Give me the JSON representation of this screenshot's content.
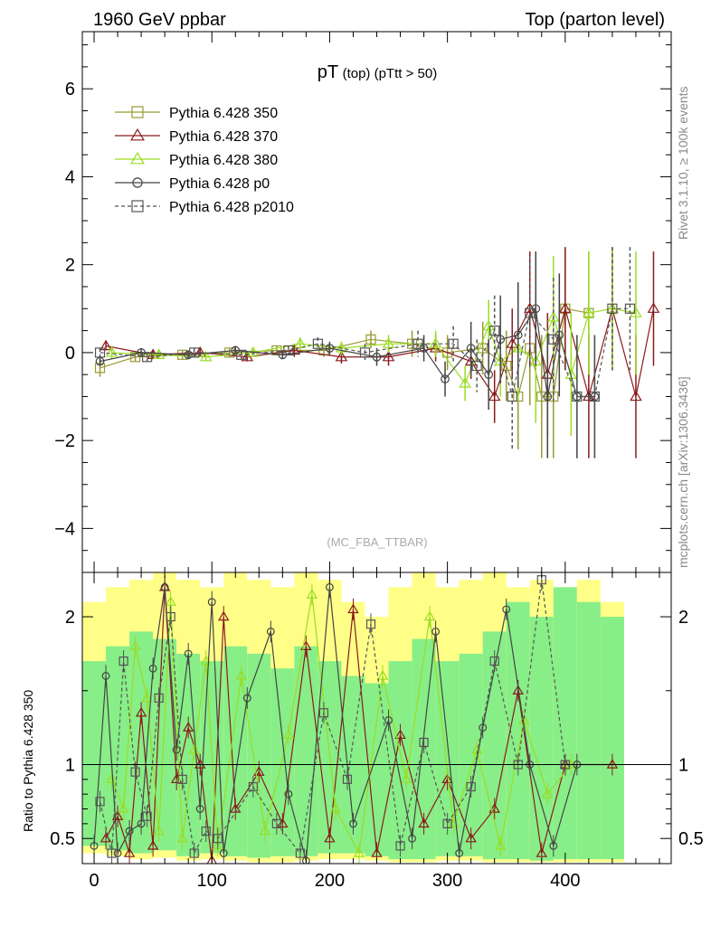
{
  "header": {
    "left": "1960 GeV ppbar",
    "right": "Top (parton level)"
  },
  "side_labels": {
    "upper": "Rivet 3.1.10, ≥ 100k events",
    "lower": "mcplots.cern.ch [arXiv:1306.3436]"
  },
  "chart_data": [
    {
      "type": "line",
      "title_main": "pT",
      "title_small": "(top) (pTtt > 50)",
      "watermark": "(MC_FBA_TTBAR)",
      "xlim": [
        -10,
        490
      ],
      "ylim": [
        -5,
        7.3
      ],
      "yticks": [
        -4,
        -2,
        0,
        2,
        4,
        6
      ],
      "ytick_labels": [
        "−4",
        "−2",
        "0",
        "2",
        "4",
        "6"
      ],
      "legend_placement": "top-left",
      "series": [
        {
          "name": "Pythia 6.428 350",
          "color": "#999933",
          "marker": "square",
          "dash": false,
          "x": [
            5,
            35,
            75,
            115,
            155,
            195,
            235,
            270,
            300,
            330,
            350,
            360,
            370,
            380,
            390,
            400,
            420
          ],
          "y": [
            -0.35,
            -0.1,
            -0.05,
            0,
            0.05,
            0.05,
            0.3,
            0.2,
            0,
            0.1,
            -0.3,
            -1.0,
            0.1,
            -1.0,
            -1.0,
            1.0,
            0.9
          ],
          "err": [
            0.2,
            0.1,
            0.1,
            0.1,
            0.1,
            0.15,
            0.2,
            0.3,
            0.4,
            0.6,
            0.8,
            1.2,
            1.3,
            1.4,
            1.4,
            1.4,
            1.4
          ]
        },
        {
          "name": "Pythia 6.428 370",
          "color": "#8b1a1a",
          "marker": "triangle",
          "dash": false,
          "x": [
            10,
            50,
            90,
            130,
            170,
            210,
            250,
            290,
            320,
            340,
            355,
            370,
            385,
            400,
            420,
            440,
            460,
            475
          ],
          "y": [
            0.15,
            -0.05,
            0,
            -0.1,
            0.05,
            -0.1,
            -0.1,
            0.1,
            -0.2,
            -1.0,
            0.2,
            1.0,
            -0.5,
            1.0,
            -1.0,
            1.0,
            -1.0,
            1.0
          ],
          "err": [
            0.1,
            0.1,
            0.1,
            0.1,
            0.15,
            0.15,
            0.2,
            0.3,
            0.4,
            0.6,
            0.8,
            1.3,
            1.4,
            1.4,
            1.4,
            1.4,
            1.4,
            1.3
          ]
        },
        {
          "name": "Pythia 6.428 380",
          "color": "#99dd22",
          "marker": "triangle",
          "dash": false,
          "x": [
            15,
            55,
            95,
            135,
            175,
            210,
            250,
            290,
            315,
            335,
            345,
            360,
            375,
            390,
            405,
            420,
            440,
            460
          ],
          "y": [
            0,
            -0.05,
            -0.1,
            0,
            0.2,
            0.1,
            0.2,
            0.2,
            -0.7,
            0.6,
            -0.2,
            0.1,
            -0.2,
            0.8,
            -0.5,
            0.9,
            1.0,
            0.9
          ],
          "err": [
            0.15,
            0.1,
            0.1,
            0.1,
            0.15,
            0.15,
            0.2,
            0.3,
            0.4,
            0.6,
            0.8,
            1.2,
            1.4,
            1.4,
            1.4,
            1.4,
            1.4,
            1.4
          ]
        },
        {
          "name": "Pythia 6.428 p0",
          "color": "#444444",
          "marker": "circle",
          "dash": false,
          "x": [
            5,
            40,
            80,
            120,
            160,
            200,
            240,
            280,
            298,
            320,
            335,
            345,
            360,
            375,
            385,
            395,
            410,
            425
          ],
          "y": [
            -0.2,
            0,
            -0.05,
            0.05,
            -0.05,
            0.1,
            -0.1,
            0.1,
            -0.6,
            0.1,
            -0.5,
            0.3,
            0.4,
            1.0,
            -1.0,
            0.4,
            -1.0,
            -1.0
          ],
          "err": [
            0.1,
            0.1,
            0.1,
            0.1,
            0.1,
            0.15,
            0.2,
            0.3,
            0.4,
            0.6,
            0.8,
            1.0,
            1.2,
            1.3,
            1.4,
            1.4,
            1.4,
            1.4
          ]
        },
        {
          "name": "Pythia 6.428 p2010",
          "color": "#555555",
          "marker": "square",
          "dash": true,
          "x": [
            5,
            45,
            85,
            125,
            165,
            190,
            230,
            275,
            305,
            325,
            340,
            355,
            370,
            390,
            410,
            425,
            440,
            455
          ],
          "y": [
            0,
            -0.1,
            0,
            -0.05,
            0.05,
            0.2,
            0,
            0.2,
            0.2,
            -0.3,
            0.5,
            -1.0,
            0.9,
            0.3,
            -1.0,
            -1.0,
            1.0,
            1.0
          ],
          "err": [
            0.1,
            0.1,
            0.1,
            0.1,
            0.1,
            0.15,
            0.2,
            0.3,
            0.4,
            0.6,
            0.8,
            1.2,
            1.3,
            1.4,
            1.4,
            1.4,
            1.4,
            1.4
          ]
        }
      ]
    },
    {
      "type": "line",
      "ylabel": "Ratio to Pythia 6.428 350",
      "xlim": [
        -10,
        490
      ],
      "ylim": [
        0.33,
        2.3
      ],
      "xticks": [
        0,
        100,
        200,
        300,
        400
      ],
      "xtick_labels": [
        "0",
        "100",
        "200",
        "300",
        "400"
      ],
      "yticks": [
        0.5,
        1,
        2
      ],
      "ytick_labels": [
        "0.5",
        "1",
        "2"
      ],
      "reference_line": 1,
      "band_edges": [
        -10,
        10,
        30,
        50,
        70,
        90,
        110,
        130,
        150,
        170,
        190,
        210,
        230,
        250,
        270,
        290,
        310,
        330,
        350,
        370,
        390,
        410,
        430,
        450
      ],
      "band_yellow_lo": [
        0.4,
        0.38,
        0.36,
        0.37,
        0.35,
        0.36,
        0.35,
        0.34,
        0.34,
        0.35,
        0.36,
        0.36,
        0.35,
        0.34,
        0.34,
        0.35,
        0.35,
        0.34,
        0.34,
        0.34,
        0.34,
        0.34,
        0.34
      ],
      "band_yellow_hi": [
        2.1,
        2.2,
        2.25,
        2.3,
        2.25,
        2.2,
        2.3,
        2.25,
        2.2,
        2.3,
        2.25,
        2.1,
        2.0,
        2.2,
        2.3,
        2.2,
        2.25,
        2.3,
        2.2,
        2.25,
        2.2,
        2.25,
        2.1
      ],
      "band_green_lo": [
        0.45,
        0.42,
        0.4,
        0.42,
        0.38,
        0.4,
        0.38,
        0.37,
        0.38,
        0.38,
        0.4,
        0.4,
        0.38,
        0.36,
        0.36,
        0.38,
        0.38,
        0.36,
        0.36,
        0.35,
        0.36,
        0.36,
        0.36
      ],
      "band_green_hi": [
        1.7,
        1.8,
        1.9,
        1.85,
        1.75,
        1.7,
        1.8,
        1.75,
        1.65,
        1.8,
        1.7,
        1.6,
        1.55,
        1.7,
        1.85,
        1.7,
        1.75,
        1.9,
        2.1,
        2.0,
        2.2,
        2.1,
        2.0
      ],
      "series": [
        {
          "color": "#8b1a1a",
          "marker": "triangle",
          "dash": false,
          "x": [
            10,
            20,
            30,
            40,
            50,
            60,
            70,
            80,
            90,
            100,
            110,
            120,
            140,
            160,
            180,
            200,
            220,
            240,
            260,
            280,
            300,
            320,
            340,
            360,
            380,
            400,
            440
          ],
          "y": [
            0.5,
            0.65,
            0.4,
            1.35,
            0.45,
            2.2,
            0.9,
            1.25,
            1.0,
            0.35,
            2.0,
            0.7,
            0.95,
            0.6,
            1.8,
            0.5,
            2.05,
            0.4,
            1.2,
            0.6,
            0.9,
            0.5,
            0.7,
            1.5,
            0.4,
            1.0,
            1.0
          ]
        },
        {
          "color": "#99dd22",
          "marker": "triangle",
          "dash": false,
          "x": [
            15,
            25,
            35,
            45,
            55,
            65,
            75,
            85,
            95,
            105,
            125,
            145,
            165,
            185,
            205,
            225,
            245,
            265,
            285,
            305,
            325,
            345,
            365,
            385,
            405
          ],
          "y": [
            0.9,
            0.7,
            1.8,
            1.45,
            0.55,
            2.1,
            0.5,
            1.1,
            1.7,
            0.45,
            1.6,
            0.55,
            1.2,
            2.15,
            0.7,
            0.4,
            1.6,
            0.9,
            2.0,
            0.6,
            1.1,
            0.45,
            1.3,
            0.8,
            1.0
          ]
        },
        {
          "color": "#444444",
          "marker": "circle",
          "dash": false,
          "x": [
            0,
            10,
            20,
            30,
            40,
            50,
            60,
            70,
            80,
            90,
            100,
            110,
            130,
            150,
            165,
            180,
            200,
            220,
            250,
            270,
            290,
            310,
            330,
            350,
            370,
            390,
            410
          ],
          "y": [
            0.45,
            1.6,
            0.4,
            0.55,
            0.6,
            1.65,
            2.2,
            1.1,
            1.75,
            0.7,
            2.1,
            0.4,
            1.45,
            1.9,
            0.8,
            0.35,
            2.2,
            0.6,
            1.3,
            0.5,
            1.9,
            0.4,
            1.25,
            2.05,
            1.0,
            0.45,
            1.0
          ]
        },
        {
          "color": "#555555",
          "marker": "square",
          "dash": true,
          "x": [
            5,
            15,
            25,
            35,
            45,
            55,
            65,
            75,
            85,
            95,
            105,
            135,
            155,
            175,
            195,
            215,
            235,
            260,
            280,
            300,
            320,
            340,
            360,
            380,
            400
          ],
          "y": [
            0.75,
            0.4,
            1.7,
            0.95,
            0.65,
            1.45,
            2.0,
            0.9,
            0.4,
            0.55,
            0.5,
            0.85,
            0.6,
            0.4,
            1.35,
            0.9,
            1.95,
            0.45,
            1.15,
            0.6,
            0.85,
            1.7,
            1.0,
            2.25,
            1.0
          ]
        }
      ]
    }
  ]
}
